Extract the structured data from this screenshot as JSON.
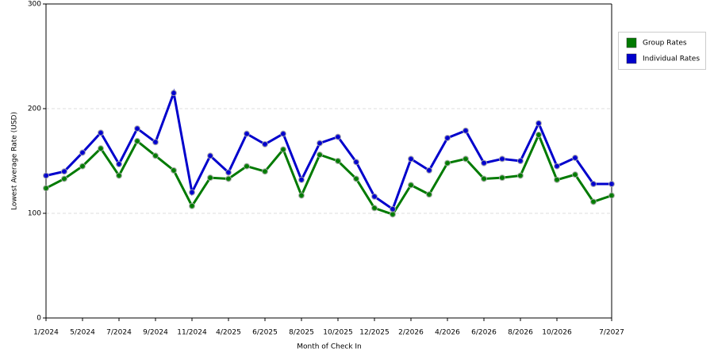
{
  "chart_data": {
    "type": "line",
    "xlabel": "Month of Check In",
    "ylabel": "Lowest Average Rate (USD)",
    "categories": [
      "1/2024",
      null,
      "5/2024",
      null,
      "7/2024",
      null,
      "9/2024",
      null,
      "11/2024",
      null,
      "4/2025",
      null,
      "6/2025",
      null,
      "8/2025",
      null,
      "10/2025",
      null,
      "12/2025",
      null,
      "2/2026",
      null,
      "4/2026",
      null,
      "6/2026",
      null,
      "8/2026",
      null,
      "10/2026",
      null,
      null,
      "7/2027"
    ],
    "series": [
      {
        "name": "Group Rates",
        "color": "#007a00",
        "values": [
          124,
          133,
          145,
          162,
          136,
          169,
          155,
          141,
          107,
          134,
          133,
          145,
          140,
          161,
          117,
          156,
          150,
          133,
          105,
          99,
          127,
          118,
          148,
          152,
          133,
          134,
          136,
          175,
          132,
          137,
          111,
          117
        ]
      },
      {
        "name": "Individual Rates",
        "color": "#0000cc",
        "values": [
          136,
          140,
          158,
          177,
          147,
          181,
          168,
          215,
          120,
          155,
          139,
          176,
          166,
          176,
          132,
          167,
          173,
          149,
          116,
          104,
          152,
          141,
          172,
          179,
          148,
          152,
          150,
          186,
          145,
          153,
          128,
          128
        ]
      }
    ],
    "ylim": [
      0,
      300
    ],
    "yticks": [
      0,
      100,
      200,
      300
    ],
    "grid": true,
    "legend": "right"
  }
}
